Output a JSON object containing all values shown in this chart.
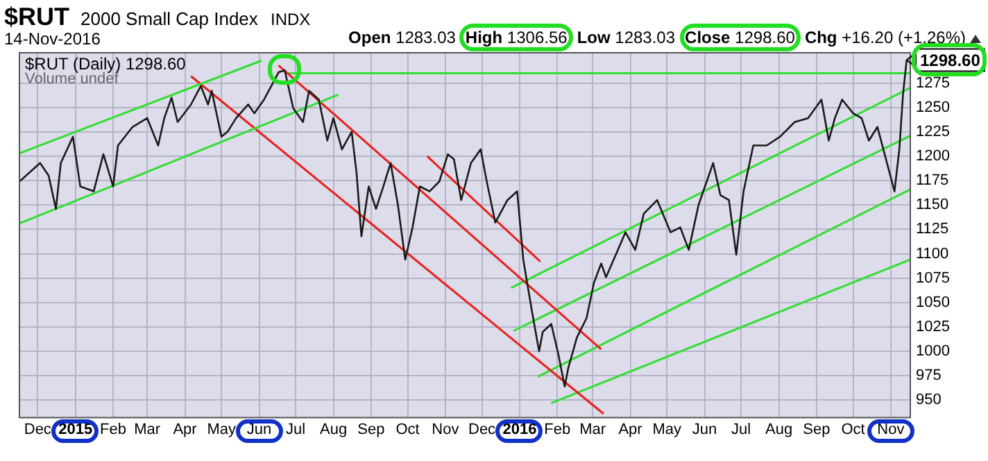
{
  "chart_data": {
    "type": "line",
    "title": "$RUT",
    "subtitle": "2000 Small Cap Index",
    "annotations": [
      "14-Nov-2016",
      "INDX",
      "Open 1283.03",
      "High 1306.56",
      "Low 1283.03",
      "Close 1298.60",
      "Chg +16.20 (+1.26%)",
      "$RUT (Daily) 1298.60",
      "Volume undef",
      {
        "text": "1298.60",
        "x": "2016-11-14",
        "y": 1298.6
      }
    ],
    "xlim": [
      "2014-11-16",
      "2016-11-17"
    ],
    "xticks": [
      {
        "value": "2014-12-01",
        "label": "Dec"
      },
      {
        "value": "2015-01-01",
        "label": "2015"
      },
      {
        "value": "2015-02-01",
        "label": "Feb"
      },
      {
        "value": "2015-03-01",
        "label": "Mar"
      },
      {
        "value": "2015-04-01",
        "label": "Apr"
      },
      {
        "value": "2015-05-01",
        "label": "May"
      },
      {
        "value": "2015-06-01",
        "label": "Jun"
      },
      {
        "value": "2015-07-01",
        "label": "Jul"
      },
      {
        "value": "2015-08-01",
        "label": "Aug"
      },
      {
        "value": "2015-09-01",
        "label": "Sep"
      },
      {
        "value": "2015-10-01",
        "label": "Oct"
      },
      {
        "value": "2015-11-01",
        "label": "Nov"
      },
      {
        "value": "2015-12-01",
        "label": "Dec"
      },
      {
        "value": "2016-01-01",
        "label": "2016"
      },
      {
        "value": "2016-02-01",
        "label": "Feb"
      },
      {
        "value": "2016-03-01",
        "label": "Mar"
      },
      {
        "value": "2016-04-01",
        "label": "Apr"
      },
      {
        "value": "2016-05-01",
        "label": "May"
      },
      {
        "value": "2016-06-01",
        "label": "Jun"
      },
      {
        "value": "2016-07-01",
        "label": "Jul"
      },
      {
        "value": "2016-08-01",
        "label": "Aug"
      },
      {
        "value": "2016-09-01",
        "label": "Sep"
      },
      {
        "value": "2016-10-01",
        "label": "Oct"
      },
      {
        "value": "2016-11-01",
        "label": "Nov"
      }
    ],
    "ylim": [
      932,
      1306
    ],
    "yticks": [
      950,
      975,
      1000,
      1025,
      1050,
      1075,
      1100,
      1125,
      1150,
      1175,
      1200,
      1225,
      1250,
      1275
    ],
    "grid": true,
    "legend": false,
    "marker": "none",
    "line_style": "solid",
    "series": [
      {
        "color": "#1a1a1a",
        "x": [
          "2014-11-16",
          "2014-12-03",
          "2014-12-10",
          "2014-12-16",
          "2014-12-20",
          "2014-12-30",
          "2015-01-05",
          "2015-01-16",
          "2015-01-24",
          "2015-02-01",
          "2015-02-05",
          "2015-02-17",
          "2015-03-01",
          "2015-03-10",
          "2015-03-15",
          "2015-03-21",
          "2015-03-26",
          "2015-04-06",
          "2015-04-14",
          "2015-04-20",
          "2015-04-23",
          "2015-05-01",
          "2015-05-06",
          "2015-05-13",
          "2015-05-23",
          "2015-05-28",
          "2015-06-05",
          "2015-06-17",
          "2015-06-22",
          "2015-06-29",
          "2015-07-07",
          "2015-07-12",
          "2015-07-20",
          "2015-07-27",
          "2015-08-01",
          "2015-08-08",
          "2015-08-16",
          "2015-08-20",
          "2015-08-24",
          "2015-08-30",
          "2015-09-05",
          "2015-09-11",
          "2015-09-17",
          "2015-09-23",
          "2015-09-29",
          "2015-10-05",
          "2015-10-11",
          "2015-10-19",
          "2015-10-27",
          "2015-11-03",
          "2015-11-08",
          "2015-11-14",
          "2015-11-22",
          "2015-11-30",
          "2015-12-05",
          "2015-12-12",
          "2015-12-22",
          "2015-12-30",
          "2016-01-04",
          "2016-01-11",
          "2016-01-17",
          "2016-01-20",
          "2016-01-27",
          "2016-02-02",
          "2016-02-07",
          "2016-02-10",
          "2016-02-17",
          "2016-02-25",
          "2016-03-02",
          "2016-03-08",
          "2016-03-12",
          "2016-03-20",
          "2016-03-28",
          "2016-04-05",
          "2016-04-12",
          "2016-04-23",
          "2016-05-04",
          "2016-05-12",
          "2016-05-19",
          "2016-05-27",
          "2016-06-08",
          "2016-06-14",
          "2016-06-21",
          "2016-06-27",
          "2016-07-03",
          "2016-07-11",
          "2016-07-22",
          "2016-08-02",
          "2016-08-14",
          "2016-08-25",
          "2016-09-05",
          "2016-09-11",
          "2016-09-16",
          "2016-09-22",
          "2016-10-01",
          "2016-10-08",
          "2016-10-14",
          "2016-10-21",
          "2016-10-28",
          "2016-11-04",
          "2016-11-08",
          "2016-11-11",
          "2016-11-14"
        ],
        "values": [
          1174,
          1193,
          1180,
          1146,
          1193,
          1220,
          1169,
          1164,
          1202,
          1169,
          1211,
          1230,
          1239,
          1211,
          1239,
          1260,
          1235,
          1253,
          1272,
          1253,
          1267,
          1220,
          1225,
          1239,
          1253,
          1244,
          1258,
          1286,
          1288,
          1249,
          1235,
          1267,
          1258,
          1216,
          1239,
          1207,
          1225,
          1183,
          1118,
          1169,
          1146,
          1169,
          1193,
          1150,
          1094,
          1127,
          1169,
          1164,
          1174,
          1202,
          1197,
          1155,
          1193,
          1207,
          1174,
          1132,
          1155,
          1164,
          1094,
          1042,
          1000,
          1020,
          1028,
          996,
          964,
          983,
          1014,
          1034,
          1070,
          1090,
          1076,
          1099,
          1122,
          1104,
          1141,
          1155,
          1122,
          1127,
          1104,
          1150,
          1193,
          1160,
          1155,
          1099,
          1164,
          1211,
          1211,
          1220,
          1235,
          1239,
          1258,
          1216,
          1239,
          1258,
          1244,
          1239,
          1216,
          1230,
          1197,
          1164,
          1207,
          1263,
          1298.6
        ]
      },
      {
        "type": "line",
        "color": "#33dd33",
        "x": [
          "2014-11-16",
          "2015-06-03"
        ],
        "values": [
          1203,
          1298
        ]
      },
      {
        "type": "line",
        "color": "#33dd33",
        "x": [
          "2014-11-16",
          "2015-08-05"
        ],
        "values": [
          1131,
          1263
        ]
      },
      {
        "type": "line",
        "color": "#e8201c",
        "x": [
          "2015-04-06",
          "2016-03-10"
        ],
        "values": [
          1282,
          936
        ]
      },
      {
        "type": "line",
        "color": "#e8201c",
        "x": [
          "2015-06-17",
          "2016-03-08"
        ],
        "values": [
          1293,
          1002
        ]
      },
      {
        "type": "line",
        "color": "#e8201c",
        "x": [
          "2015-10-17",
          "2016-01-18"
        ],
        "values": [
          1200,
          1092
        ]
      },
      {
        "type": "line",
        "color": "#33dd33",
        "x": [
          "2015-06-25",
          "2016-11-17"
        ],
        "values": [
          1285,
          1285
        ]
      },
      {
        "type": "line",
        "color": "#33dd33",
        "x": [
          "2015-12-25",
          "2016-11-17"
        ],
        "values": [
          1065,
          1270
        ]
      },
      {
        "type": "line",
        "color": "#33dd33",
        "x": [
          "2015-12-27",
          "2016-11-17"
        ],
        "values": [
          1021,
          1221
        ]
      },
      {
        "type": "line",
        "color": "#33dd33",
        "x": [
          "2016-01-16",
          "2016-11-17"
        ],
        "values": [
          974,
          1166
        ]
      },
      {
        "type": "line",
        "color": "#33dd33",
        "x": [
          "2016-01-27",
          "2016-11-17"
        ],
        "values": [
          947,
          1094
        ]
      }
    ]
  }
}
